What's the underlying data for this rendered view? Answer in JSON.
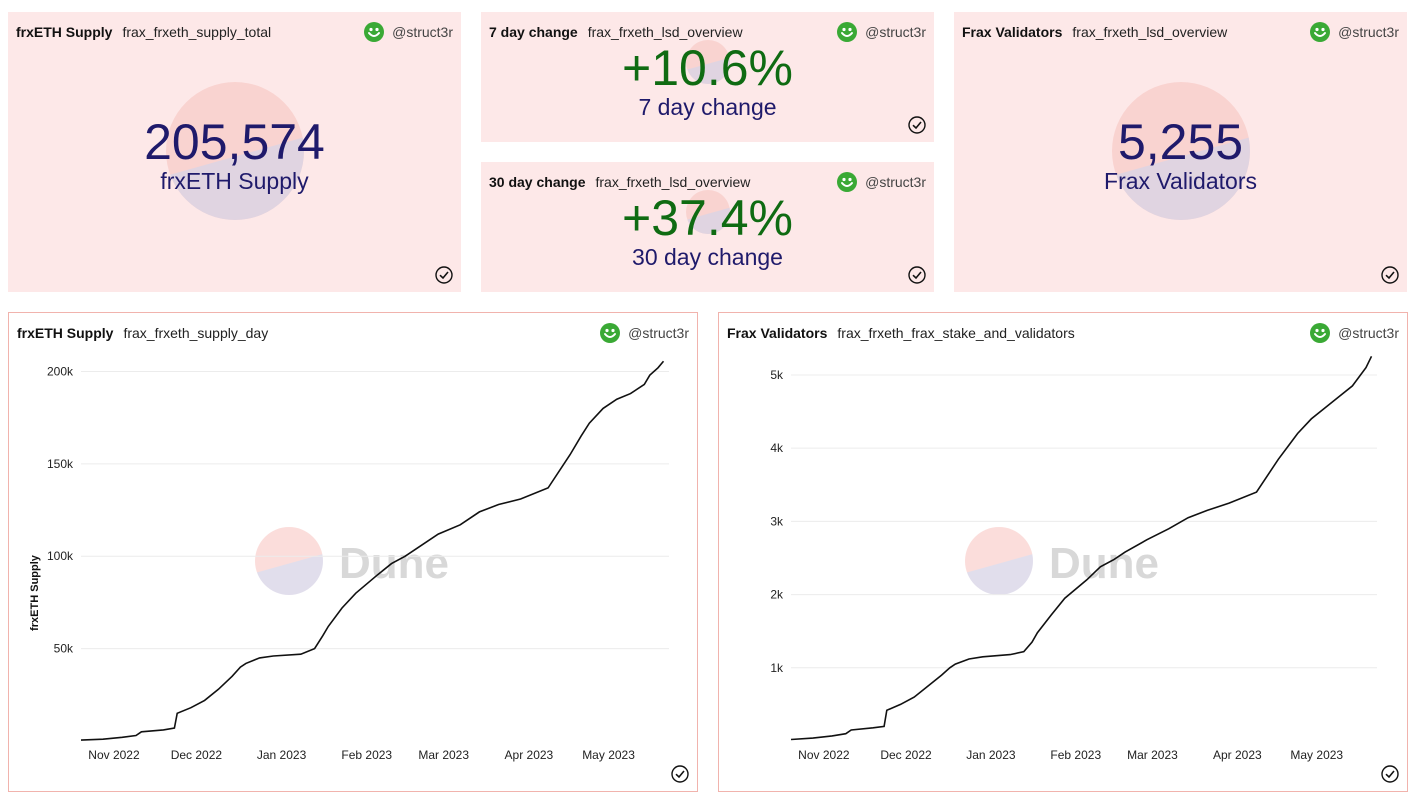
{
  "colors": {
    "counter_bg": "#fde8e8",
    "chart_border": "#f1b3ad",
    "value_dark": "#1f1a6b",
    "value_green": "#0f6b12",
    "smiley": "#3aa935"
  },
  "cards": {
    "supply_total": {
      "title": "frxETH Supply",
      "query": "frax_frxeth_supply_total",
      "author": "@struct3r",
      "value": "205,574",
      "label": "frxETH Supply"
    },
    "change_7d": {
      "title": "7 day change",
      "query": "frax_frxeth_lsd_overview",
      "author": "@struct3r",
      "value": "+10.6%",
      "label": "7 day change"
    },
    "change_30d": {
      "title": "30 day change",
      "query": "frax_frxeth_lsd_overview",
      "author": "@struct3r",
      "value": "+37.4%",
      "label": "30 day change"
    },
    "validators_total": {
      "title": "Frax Validators",
      "query": "frax_frxeth_lsd_overview",
      "author": "@struct3r",
      "value": "5,255",
      "label": "Frax Validators"
    },
    "supply_chart": {
      "title": "frxETH Supply",
      "query": "frax_frxeth_supply_day",
      "author": "@struct3r",
      "watermark": "Dune"
    },
    "validators_chart": {
      "title": "Frax Validators",
      "query": "frax_frxeth_frax_stake_and_validators",
      "author": "@struct3r",
      "watermark": "Dune"
    }
  },
  "chart_data": [
    {
      "type": "line",
      "title": "frxETH Supply",
      "ylabel": "frxETH Supply",
      "xlabel": "",
      "x_ticks": [
        "Nov 2022",
        "Dec 2022",
        "Jan 2023",
        "Feb 2023",
        "Mar 2023",
        "Apr 2023",
        "May 2023"
      ],
      "y_ticks": [
        "50k",
        "100k",
        "150k",
        "200k"
      ],
      "y_tick_values": [
        50000,
        100000,
        150000,
        200000
      ],
      "ylim": [
        0,
        210000
      ],
      "xlim_days": [
        0,
        214
      ],
      "x_tick_days": [
        12,
        42,
        73,
        104,
        132,
        163,
        192
      ],
      "series": [
        {
          "name": "frxETH Supply",
          "x_days": [
            0,
            8,
            15,
            20,
            22,
            30,
            34,
            35,
            40,
            45,
            50,
            55,
            58,
            60,
            65,
            70,
            80,
            85,
            88,
            90,
            95,
            100,
            108,
            113,
            118,
            122,
            130,
            138,
            145,
            152,
            160,
            170,
            178,
            182,
            185,
            190,
            195,
            200,
            205,
            207,
            210,
            212
          ],
          "values": [
            500,
            1000,
            2000,
            3000,
            5000,
            6000,
            7000,
            15000,
            18000,
            22000,
            28000,
            35000,
            40000,
            42000,
            45000,
            46000,
            47000,
            50000,
            57000,
            62000,
            72000,
            80000,
            90000,
            96000,
            100000,
            104000,
            112000,
            117000,
            124000,
            128000,
            131000,
            137000,
            155000,
            165000,
            172000,
            180000,
            185000,
            188000,
            193000,
            198000,
            202000,
            205574
          ]
        }
      ]
    },
    {
      "type": "line",
      "title": "Frax Validators",
      "xlabel": "",
      "ylabel": "",
      "x_ticks": [
        "Nov 2022",
        "Dec 2022",
        "Jan 2023",
        "Feb 2023",
        "Mar 2023",
        "Apr 2023",
        "May 2023"
      ],
      "y_ticks": [
        "1k",
        "2k",
        "3k",
        "4k",
        "5k"
      ],
      "y_tick_values": [
        1000,
        2000,
        3000,
        4000,
        5000
      ],
      "ylim": [
        0,
        5300
      ],
      "xlim_days": [
        0,
        214
      ],
      "x_tick_days": [
        12,
        42,
        73,
        104,
        132,
        163,
        192
      ],
      "series": [
        {
          "name": "Frax Validators",
          "x_days": [
            0,
            8,
            15,
            20,
            22,
            30,
            34,
            35,
            40,
            45,
            50,
            55,
            58,
            60,
            65,
            70,
            80,
            85,
            88,
            90,
            95,
            100,
            108,
            113,
            118,
            122,
            130,
            138,
            145,
            152,
            160,
            170,
            178,
            182,
            185,
            190,
            195,
            200,
            205,
            207,
            210,
            212
          ],
          "values": [
            20,
            40,
            70,
            100,
            150,
            180,
            200,
            420,
            500,
            600,
            750,
            900,
            1000,
            1050,
            1120,
            1150,
            1180,
            1220,
            1350,
            1480,
            1720,
            1950,
            2200,
            2380,
            2480,
            2580,
            2750,
            2900,
            3050,
            3150,
            3250,
            3400,
            3850,
            4050,
            4200,
            4400,
            4550,
            4700,
            4850,
            4950,
            5100,
            5255
          ]
        }
      ]
    }
  ]
}
